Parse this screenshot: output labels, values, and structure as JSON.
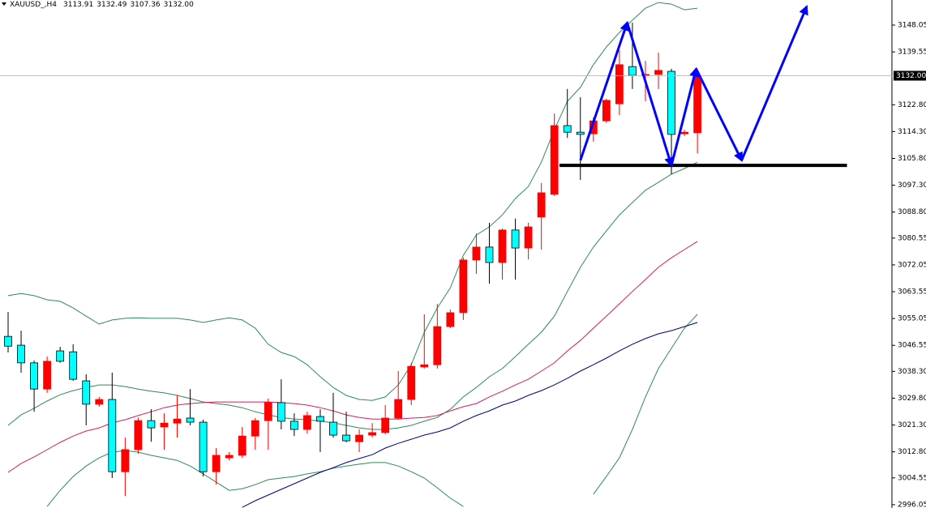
{
  "chart_data": {
    "type": "candlestick",
    "title": "XAUUSD_,H4",
    "header": {
      "values": [
        3113.91,
        3132.49,
        3107.36,
        3132
      ],
      "value_labels": [
        "3113.91",
        "3132.49",
        "3107.36",
        "3132.00"
      ]
    },
    "open": [
      3049.4,
      3046.6,
      3041.0,
      3032.7,
      3044.8,
      3044.5,
      3035.3,
      3027.9,
      3029.4,
      3006.5,
      3013.5,
      3022.7,
      3020.7,
      3021.9,
      3023.5,
      3022.2,
      3006.5,
      3010.9,
      3011.7,
      3017.8,
      3022.7,
      3028.4,
      3022.5,
      3019.9,
      3024.0,
      3022.2,
      3018.1,
      3016.0,
      3018.1,
      3018.9,
      3023.5,
      3029.4,
      3039.7,
      3040.4,
      3052.5,
      3056.9,
      3073.6,
      3077.7,
      3072.8,
      3083.1,
      3077.4,
      3087.2,
      3094.4,
      3116.2,
      3114.1,
      3113.6,
      3117.7,
      3123.1,
      3134.9,
      3132.1,
      3132.4,
      3133.4,
      3113.6,
      3113.91
    ],
    "high": [
      3057.1,
      3051.2,
      3041.7,
      3043.0,
      3046.1,
      3046.9,
      3037.4,
      3030.2,
      3037.9,
      3017.3,
      3023.7,
      3026.3,
      3025.0,
      3030.7,
      3032.7,
      3023.0,
      3014.0,
      3012.7,
      3020.7,
      3023.5,
      3029.7,
      3035.8,
      3025.0,
      3025.5,
      3026.3,
      3031.5,
      3025.5,
      3019.9,
      3021.9,
      3027.6,
      3038.4,
      3041.0,
      3056.4,
      3059.7,
      3057.9,
      3074.3,
      3082.0,
      3085.4,
      3083.6,
      3086.7,
      3085.4,
      3098.0,
      3120.0,
      3127.8,
      3125.2,
      3118.8,
      3124.7,
      3140.1,
      3148.8,
      3136.7,
      3139.3,
      3134.2,
      3114.9,
      3132.49
    ],
    "low": [
      3044.3,
      3037.9,
      3025.5,
      3031.5,
      3041.0,
      3035.3,
      3021.2,
      3027.1,
      3004.5,
      2998.8,
      3012.2,
      3016.0,
      3013.5,
      3017.3,
      3021.2,
      3005.0,
      3002.4,
      3010.1,
      3010.9,
      3013.5,
      3013.5,
      3019.9,
      3017.8,
      3018.6,
      3012.7,
      3017.3,
      3015.8,
      3012.7,
      3017.3,
      3018.4,
      3023.0,
      3027.6,
      3039.2,
      3039.2,
      3052.0,
      3054.6,
      3069.2,
      3066.1,
      3067.4,
      3067.4,
      3073.8,
      3076.9,
      3093.9,
      3112.3,
      3099.0,
      3111.1,
      3117.0,
      3119.5,
      3127.8,
      3123.9,
      3127.8,
      3100.8,
      3112.9,
      3107.36
    ],
    "close": [
      3046.3,
      3041.0,
      3032.7,
      3041.5,
      3041.5,
      3035.8,
      3027.9,
      3029.4,
      3006.5,
      3013.5,
      3022.7,
      3020.4,
      3021.9,
      3023.2,
      3022.2,
      3006.5,
      3011.7,
      3011.7,
      3017.8,
      3022.7,
      3028.4,
      3022.5,
      3019.9,
      3024.3,
      3022.5,
      3018.1,
      3016.3,
      3018.1,
      3018.9,
      3023.5,
      3029.4,
      3039.9,
      3040.4,
      3052.5,
      3056.9,
      3073.6,
      3077.7,
      3072.8,
      3083.1,
      3077.4,
      3084.1,
      3094.9,
      3116.2,
      3114.1,
      3113.4,
      3117.7,
      3124.2,
      3135.5,
      3132.1,
      3132.4,
      3133.7,
      3113.4,
      3114.1,
      3132.0
    ],
    "up_color": "#ff0000",
    "down_color": "#00ffff",
    "down_outline": "#000000",
    "series": [
      {
        "color": "#2e8b57",
        "values": [
          3062.3,
          3063.0,
          3062.3,
          3061.0,
          3060.5,
          3058.4,
          3055.8,
          3053.3,
          3054.6,
          3055.1,
          3055.3,
          3055.1,
          3055.1,
          3055.1,
          3054.6,
          3053.8,
          3054.6,
          3055.3,
          3054.6,
          3052.0,
          3046.9,
          3044.3,
          3043.0,
          3040.4,
          3036.6,
          3033.2,
          3030.7,
          3029.4,
          3029.1,
          3030.2,
          3034.0,
          3040.4,
          3050.7,
          3058.4,
          3064.8,
          3075.1,
          3081.5,
          3084.1,
          3087.9,
          3093.1,
          3096.9,
          3104.6,
          3114.9,
          3123.9,
          3128.3,
          3135.5,
          3141.1,
          3145.7,
          3149.6,
          3153.4,
          3155.2,
          3154.7,
          3152.9,
          3153.4
        ]
      },
      {
        "color": "#2e8b57",
        "values": [
          3021.2,
          3024.5,
          3026.6,
          3028.9,
          3030.9,
          3032.2,
          3033.2,
          3034.0,
          3034.0,
          3033.5,
          3032.7,
          3032.0,
          3031.5,
          3030.7,
          3029.7,
          3028.6,
          3028.1,
          3027.6,
          3026.8,
          3025.5,
          3024.5,
          3023.7,
          3023.2,
          3023.0,
          3022.5,
          3022.0,
          3021.2,
          3020.4,
          3019.9,
          3019.9,
          3020.4,
          3021.2,
          3022.5,
          3023.7,
          3026.3,
          3030.2,
          3033.2,
          3036.6,
          3039.2,
          3043.0,
          3046.9,
          3050.7,
          3055.8,
          3063.6,
          3071.3,
          3077.7,
          3082.8,
          3087.9,
          3091.8,
          3095.7,
          3098.2,
          3100.8,
          3102.6,
          3104.6
        ]
      },
      {
        "color": "#2e8b57",
        "values": [
          null,
          null,
          null,
          2995.5,
          3000.6,
          3005.0,
          3008.3,
          3010.9,
          3012.7,
          3013.2,
          3012.7,
          3011.7,
          3010.9,
          3010.1,
          3008.3,
          3005.8,
          3003.2,
          3000.6,
          3001.1,
          3002.4,
          3004.0,
          3004.5,
          3005.0,
          3005.8,
          3006.5,
          3007.6,
          3008.3,
          3008.9,
          3009.4,
          3009.4,
          3008.3,
          3006.5,
          3004.5,
          3001.4,
          2998.1,
          2995.5,
          null,
          null,
          null,
          null,
          null,
          null,
          null,
          null,
          null,
          2999.4,
          3005.0,
          3010.9,
          3019.9,
          3030.2,
          3039.2,
          3045.6,
          3052.0,
          3056.4
        ]
      },
      {
        "color": "#d81b60",
        "values": [
          3006.3,
          3009.1,
          3011.2,
          3013.5,
          3015.8,
          3017.8,
          3019.4,
          3020.4,
          3022.0,
          3023.0,
          3024.3,
          3025.5,
          3026.8,
          3027.6,
          3028.1,
          3028.4,
          3028.6,
          3028.6,
          3028.6,
          3028.6,
          3028.6,
          3028.4,
          3028.1,
          3027.6,
          3026.8,
          3025.8,
          3024.5,
          3023.7,
          3023.2,
          3023.2,
          3023.2,
          3023.5,
          3023.7,
          3024.3,
          3025.8,
          3027.1,
          3028.1,
          3030.2,
          3032.0,
          3034.0,
          3035.8,
          3038.4,
          3041.0,
          3044.8,
          3048.1,
          3052.0,
          3055.8,
          3059.7,
          3063.6,
          3067.4,
          3071.3,
          3074.3,
          3076.9,
          3079.5
        ]
      },
      {
        "color": "#000080",
        "values": [
          null,
          null,
          null,
          null,
          null,
          null,
          null,
          null,
          null,
          null,
          null,
          null,
          null,
          null,
          null,
          null,
          null,
          null,
          2995.2,
          2997.3,
          2999.1,
          3000.9,
          3002.7,
          3004.5,
          3006.3,
          3007.8,
          3009.4,
          3010.7,
          3011.9,
          3014.0,
          3015.5,
          3016.8,
          3018.1,
          3019.1,
          3020.4,
          3022.5,
          3024.3,
          3025.8,
          3027.6,
          3028.9,
          3030.7,
          3032.2,
          3034.0,
          3036.1,
          3038.4,
          3040.4,
          3042.5,
          3044.8,
          3046.9,
          3048.7,
          3050.2,
          3051.2,
          3052.5,
          3053.8
        ]
      }
    ],
    "price": {
      "value": 3132.0,
      "label": "3132.00"
    },
    "support": {
      "x": [
        42.4,
        64.5
      ],
      "value": 3103.6,
      "color": "#000000"
    },
    "zigzag": {
      "x": [
        44.0,
        47.6,
        51.0,
        52.9,
        56.4,
        61.4
      ],
      "y": [
        3105.2,
        3148.8,
        3103.6,
        3134.2,
        3105.2,
        3153.9
      ],
      "color": "#0000ff"
    },
    "ylim": [
      2995.0,
      3156.0
    ],
    "yticks": [
      3148.05,
      3139.55,
      {
        "value": 3122.8,
        "label": "3122.80"
      },
      {
        "value": 3114.3,
        "label": "3114.30"
      },
      {
        "value": 3105.8,
        "label": "3105.80"
      },
      {
        "value": 3097.3,
        "label": "3097.30"
      },
      {
        "value": 3088.8,
        "label": "3088.80"
      },
      3080.55,
      3072.05,
      3063.55,
      3055.05,
      3046.55,
      {
        "value": 3038.3,
        "label": "3038.30"
      },
      {
        "value": 3029.8,
        "label": "3029.80"
      },
      {
        "value": 3021.3,
        "label": "3021.30"
      },
      {
        "value": 3012.8,
        "label": "3012.80"
      },
      3004.55,
      2996.05
    ]
  }
}
